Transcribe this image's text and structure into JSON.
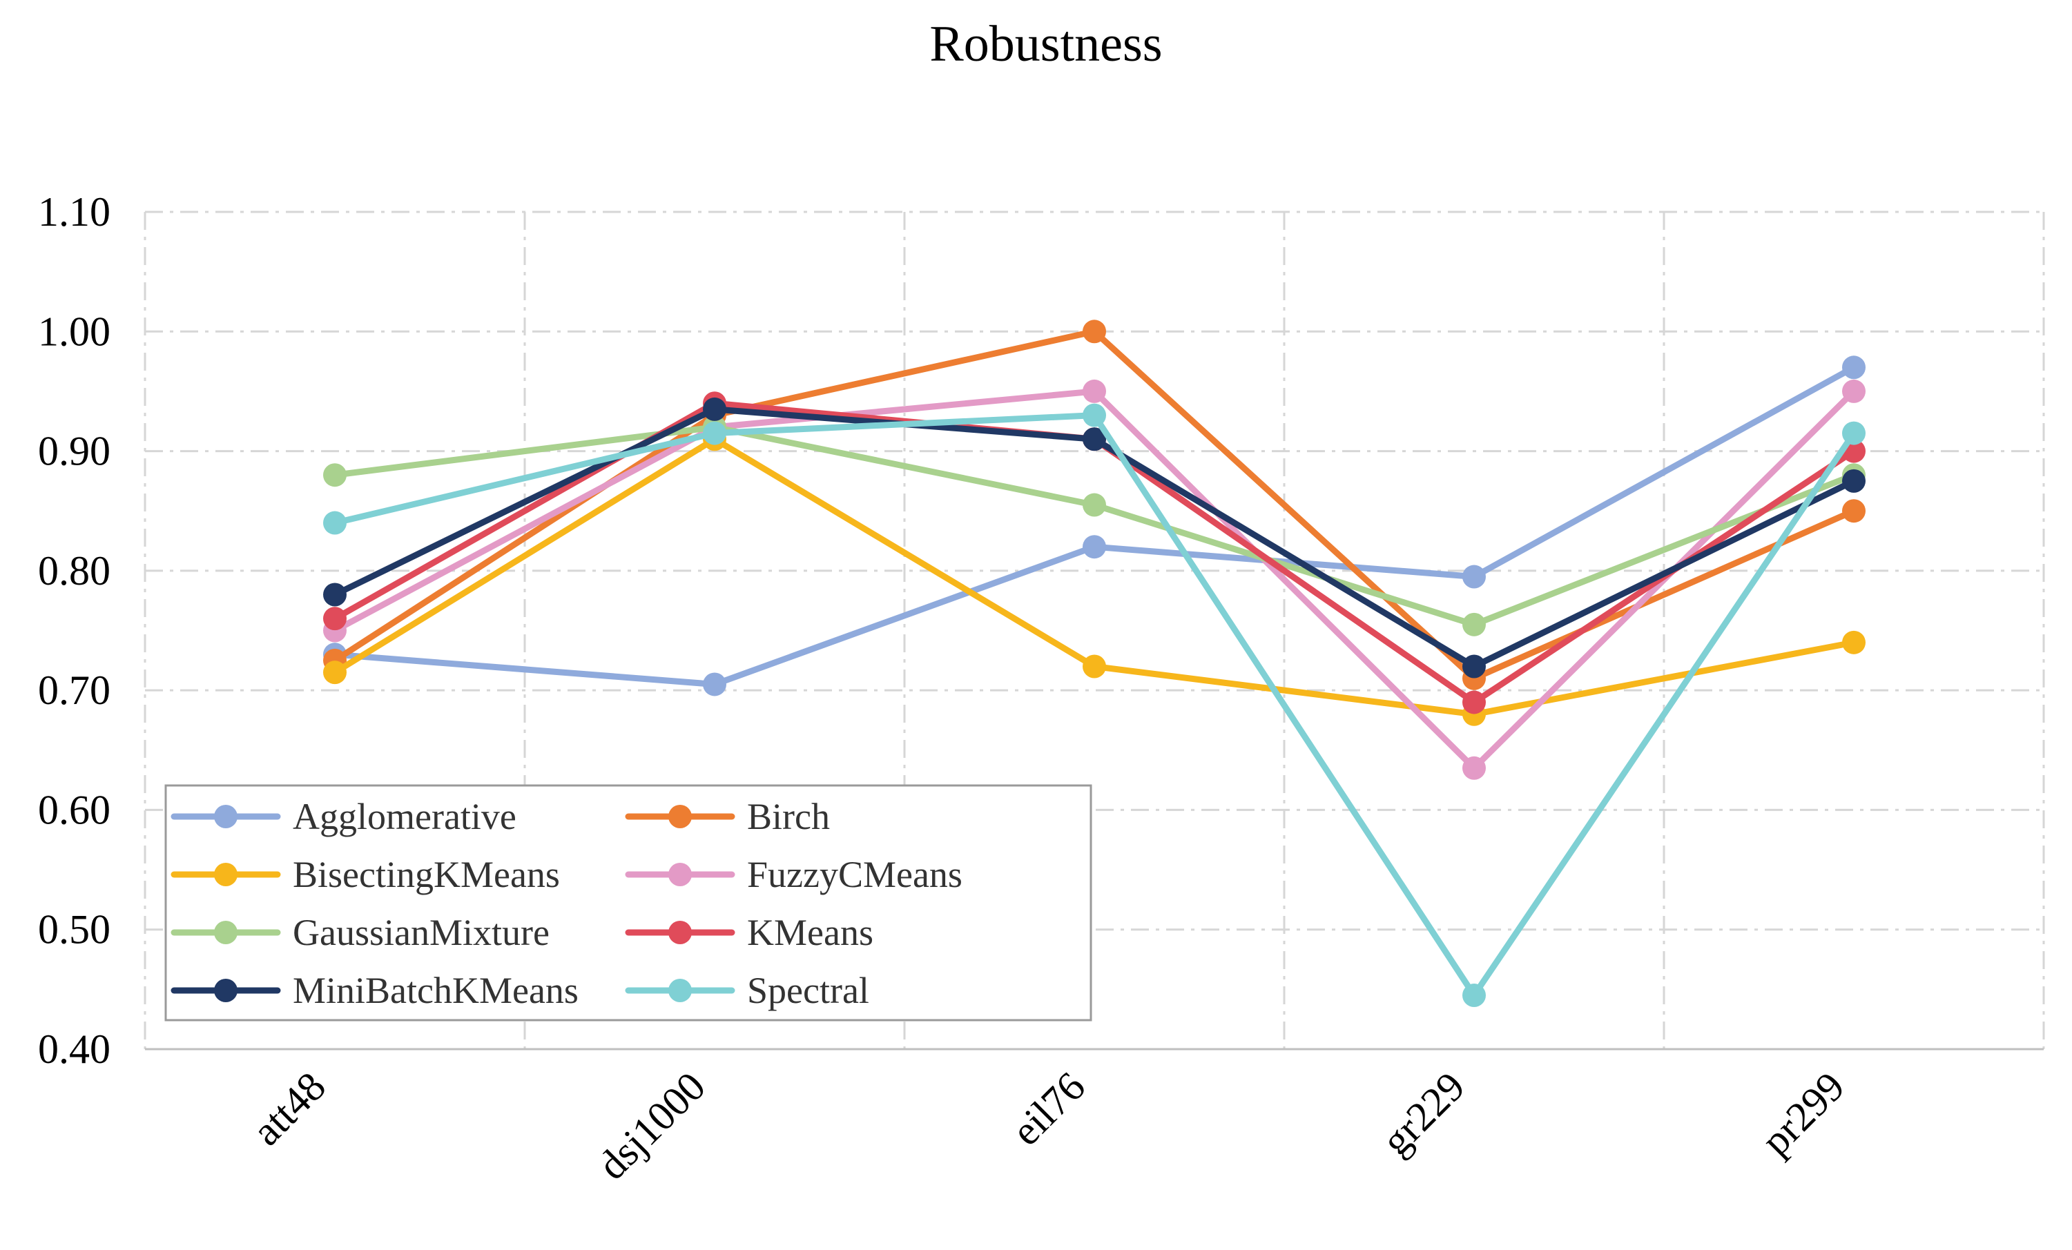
{
  "chart_data": {
    "type": "line",
    "title": "Robustness",
    "xlabel": "",
    "ylabel": "",
    "categories": [
      "att48",
      "dsj1000",
      "eil76",
      "gr229",
      "pr299"
    ],
    "ylim": [
      0.4,
      1.1
    ],
    "yticks": [
      "0.40",
      "0.50",
      "0.60",
      "0.70",
      "0.80",
      "0.90",
      "1.00",
      "1.10"
    ],
    "grid": true,
    "legend_position": "lower-left",
    "legend_columns": 2,
    "series": [
      {
        "name": "Agglomerative",
        "color": "#8faadc",
        "values": [
          0.73,
          0.705,
          0.82,
          0.795,
          0.97
        ]
      },
      {
        "name": "Birch",
        "color": "#ed7d31",
        "values": [
          0.725,
          0.93,
          1.0,
          0.71,
          0.85
        ]
      },
      {
        "name": "BisectingKMeans",
        "color": "#f7b61b",
        "values": [
          0.715,
          0.91,
          0.72,
          0.68,
          0.74
        ]
      },
      {
        "name": "FuzzyCMeans",
        "color": "#e39ac6",
        "values": [
          0.75,
          0.92,
          0.95,
          0.635,
          0.95
        ]
      },
      {
        "name": "GaussianMixture",
        "color": "#a9d18e",
        "values": [
          0.88,
          0.92,
          0.855,
          0.755,
          0.88
        ]
      },
      {
        "name": "KMeans",
        "color": "#e04b5a",
        "values": [
          0.76,
          0.94,
          0.91,
          0.69,
          0.9
        ]
      },
      {
        "name": "MiniBatchKMeans",
        "color": "#203864",
        "values": [
          0.78,
          0.935,
          0.91,
          0.72,
          0.875
        ]
      },
      {
        "name": "Spectral",
        "color": "#7fd0d4",
        "values": [
          0.84,
          0.915,
          0.93,
          0.445,
          0.915
        ]
      }
    ]
  }
}
